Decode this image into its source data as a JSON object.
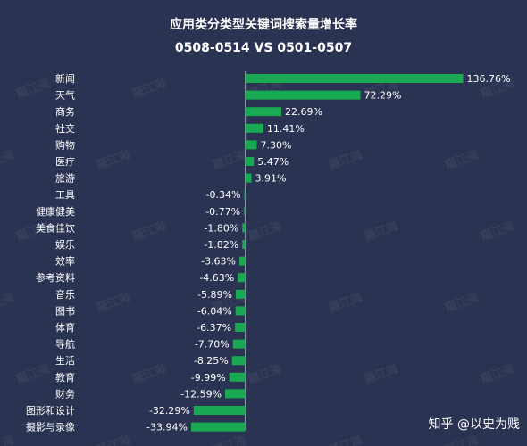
{
  "chart_data": {
    "type": "bar",
    "orientation": "horizontal",
    "title": "应用类分类型关键词搜索量增长率",
    "subtitle": "0508-0514 VS 0501-0507",
    "categories": [
      "新闻",
      "天气",
      "商务",
      "社交",
      "购物",
      "医疗",
      "旅游",
      "工具",
      "健康健美",
      "美食佳饮",
      "娱乐",
      "效率",
      "参考资料",
      "音乐",
      "图书",
      "体育",
      "导航",
      "生活",
      "教育",
      "财务",
      "图形和设计",
      "摄影与录像"
    ],
    "values": [
      136.76,
      72.29,
      22.69,
      11.41,
      7.3,
      5.47,
      3.91,
      -0.34,
      -0.77,
      -1.8,
      -1.82,
      -3.63,
      -4.63,
      -5.89,
      -6.04,
      -6.37,
      -7.7,
      -8.25,
      -9.99,
      -12.59,
      -32.29,
      -33.94
    ],
    "value_labels": [
      "136.76%",
      "72.29%",
      "22.69%",
      "11.41%",
      "7.30%",
      "5.47%",
      "3.91%",
      "-0.34%",
      "-0.77%",
      "-1.80%",
      "-1.82%",
      "-3.63%",
      "-4.63%",
      "-5.89%",
      "-6.04%",
      "-6.37%",
      "-7.70%",
      "-8.25%",
      "-9.99%",
      "-12.59%",
      "-32.29%",
      "-33.94%"
    ],
    "unit": "%",
    "grid": false,
    "legend": "none",
    "bar_color": "#19a952",
    "background": "#2b3352"
  },
  "watermark": {
    "text": "羅江海"
  },
  "credit": {
    "text": "知乎 @以史为贱"
  }
}
